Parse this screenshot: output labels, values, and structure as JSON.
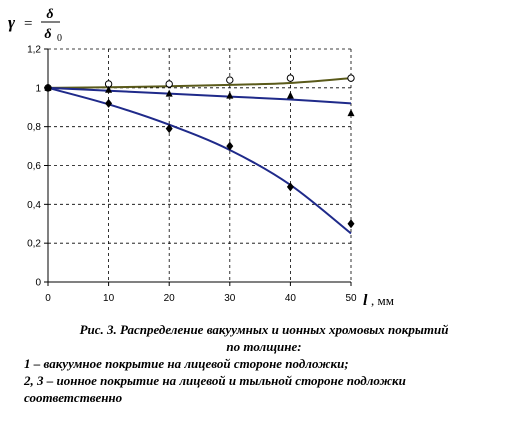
{
  "chart_data": {
    "type": "scatter",
    "ylabel": {
      "symbol": "γ",
      "eq": "=",
      "num": "δ",
      "den": "δ",
      "den_sub": "0"
    },
    "xlabel": {
      "var": "l",
      "unit": ", мм"
    },
    "xlim": [
      0,
      50
    ],
    "ylim": [
      0,
      1.2
    ],
    "x_ticks": [
      "0",
      "10",
      "20",
      "30",
      "40",
      "50"
    ],
    "y_ticks": [
      "0",
      "0,2",
      "0,4",
      "0,6",
      "0,8",
      "1",
      "1,2"
    ],
    "grid": true,
    "series": [
      {
        "id": "1",
        "marker": "open-circle",
        "line_color": "#5a5a1a",
        "points": [
          [
            0,
            1.0
          ],
          [
            10,
            1.02
          ],
          [
            20,
            1.02
          ],
          [
            30,
            1.04
          ],
          [
            40,
            1.05
          ],
          [
            50,
            1.05
          ]
        ],
        "fit": [
          [
            0,
            1.0
          ],
          [
            10,
            1.003
          ],
          [
            20,
            1.008
          ],
          [
            30,
            1.015
          ],
          [
            40,
            1.025
          ],
          [
            50,
            1.05
          ]
        ]
      },
      {
        "id": "2",
        "marker": "triangle",
        "line_color": "#1f2a8a",
        "points": [
          [
            0,
            1.0
          ],
          [
            10,
            0.99
          ],
          [
            20,
            0.97
          ],
          [
            30,
            0.96
          ],
          [
            40,
            0.96
          ],
          [
            50,
            0.87
          ]
        ],
        "fit": [
          [
            0,
            1.0
          ],
          [
            10,
            0.985
          ],
          [
            20,
            0.97
          ],
          [
            30,
            0.955
          ],
          [
            40,
            0.94
          ],
          [
            50,
            0.92
          ]
        ]
      },
      {
        "id": "3",
        "marker": "diamond",
        "line_color": "#1f2a8a",
        "points": [
          [
            0,
            1.0
          ],
          [
            10,
            0.92
          ],
          [
            20,
            0.79
          ],
          [
            30,
            0.7
          ],
          [
            40,
            0.49
          ],
          [
            50,
            0.3
          ]
        ],
        "fit": [
          [
            0,
            1.0
          ],
          [
            10,
            0.915
          ],
          [
            20,
            0.81
          ],
          [
            30,
            0.68
          ],
          [
            40,
            0.5
          ],
          [
            50,
            0.25
          ]
        ]
      }
    ]
  },
  "caption": {
    "title_line1": "Рис. 3. Распределение вакуумных и ионных хромовых покрытий",
    "title_line2": "по толщине:",
    "item1": "1 – вакуумное покрытие на лицевой стороне подложки;",
    "item2": "2, 3 – ионное покрытие на лицевой и тыльной стороне подложки",
    "item2_cont": "соответственно"
  }
}
